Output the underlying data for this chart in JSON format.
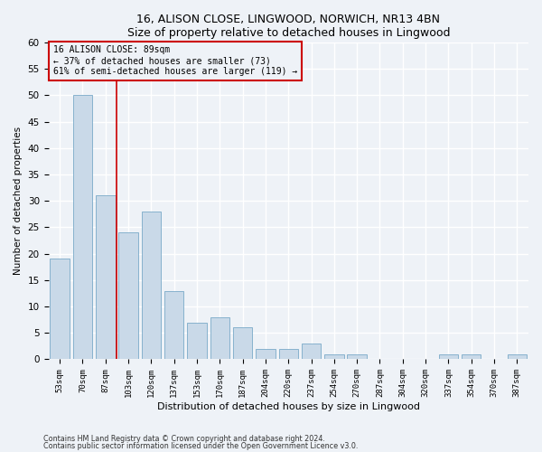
{
  "title": "16, ALISON CLOSE, LINGWOOD, NORWICH, NR13 4BN",
  "subtitle": "Size of property relative to detached houses in Lingwood",
  "xlabel": "Distribution of detached houses by size in Lingwood",
  "ylabel": "Number of detached properties",
  "bar_labels": [
    "53sqm",
    "70sqm",
    "87sqm",
    "103sqm",
    "120sqm",
    "137sqm",
    "153sqm",
    "170sqm",
    "187sqm",
    "204sqm",
    "220sqm",
    "237sqm",
    "254sqm",
    "270sqm",
    "287sqm",
    "304sqm",
    "320sqm",
    "337sqm",
    "354sqm",
    "370sqm",
    "387sqm"
  ],
  "bar_values": [
    19,
    50,
    31,
    24,
    28,
    13,
    7,
    8,
    6,
    2,
    2,
    3,
    1,
    1,
    0,
    0,
    0,
    1,
    1,
    0,
    1
  ],
  "bar_color": "#c9d9e8",
  "bar_edgecolor": "#7aaac8",
  "vline_x": 2,
  "vline_color": "#cc0000",
  "annotation_lines": [
    "16 ALISON CLOSE: 89sqm",
    "← 37% of detached houses are smaller (73)",
    "61% of semi-detached houses are larger (119) →"
  ],
  "annotation_box_edgecolor": "#cc0000",
  "ylim": [
    0,
    60
  ],
  "yticks": [
    0,
    5,
    10,
    15,
    20,
    25,
    30,
    35,
    40,
    45,
    50,
    55,
    60
  ],
  "footnote1": "Contains HM Land Registry data © Crown copyright and database right 2024.",
  "footnote2": "Contains public sector information licensed under the Open Government Licence v3.0.",
  "background_color": "#eef2f7",
  "grid_color": "#ffffff"
}
